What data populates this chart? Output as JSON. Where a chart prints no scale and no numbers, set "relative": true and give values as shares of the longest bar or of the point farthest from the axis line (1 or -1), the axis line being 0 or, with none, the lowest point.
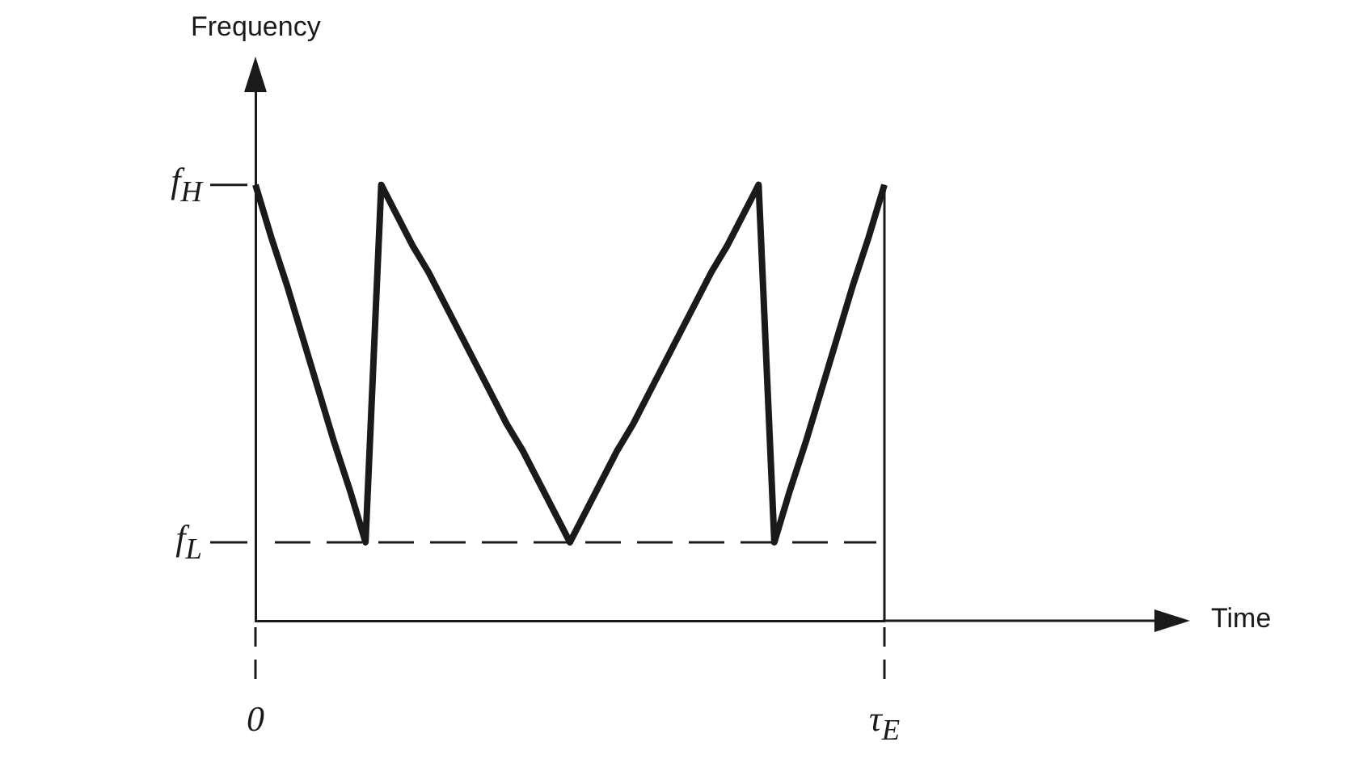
{
  "chart_data": {
    "type": "line",
    "relative": true,
    "annotations": [
      "Frequency",
      "Time"
    ],
    "categories": [
      "0",
      null,
      null,
      null,
      null,
      null,
      null,
      null,
      null,
      null,
      null,
      null,
      null,
      null,
      null,
      null,
      null,
      null,
      null,
      null,
      null,
      null,
      null,
      null,
      null,
      null,
      null,
      null,
      null,
      null,
      null,
      null,
      null,
      null,
      null,
      null,
      null,
      null,
      null,
      null,
      "τ$_{E}$"
    ],
    "series": [
      {
        "color": "#1a1a1a",
        "values": [
          1,
          0.88,
          0.77,
          0.65,
          0.53,
          0.41,
          0.3,
          0.18,
          1,
          0.93,
          0.86,
          0.8,
          0.73,
          0.66,
          0.59,
          0.52,
          0.45,
          0.39,
          0.32,
          0.25,
          0.18,
          0.25,
          0.32,
          0.39,
          0.45,
          0.52,
          0.59,
          0.66,
          0.73,
          0.8,
          0.86,
          0.93,
          1,
          0.18,
          0.3,
          0.41,
          0.53,
          0.65,
          0.77,
          0.88,
          1
        ]
      }
    ],
    "ref_lines": [
      {
        "axis": "y",
        "value": 1,
        "label": "f$_{H}$"
      },
      {
        "axis": "y",
        "value": 0.18,
        "label": "f$_{L}$",
        "line_style": "dashed",
        "color": "#1a1a1a"
      },
      {
        "axis": "x",
        "value": "τ$_{E}$",
        "line_style": "solid",
        "color": "#1a1a1a"
      }
    ],
    "grid": false,
    "legend": false,
    "marker": "none",
    "line_style": "solid"
  }
}
